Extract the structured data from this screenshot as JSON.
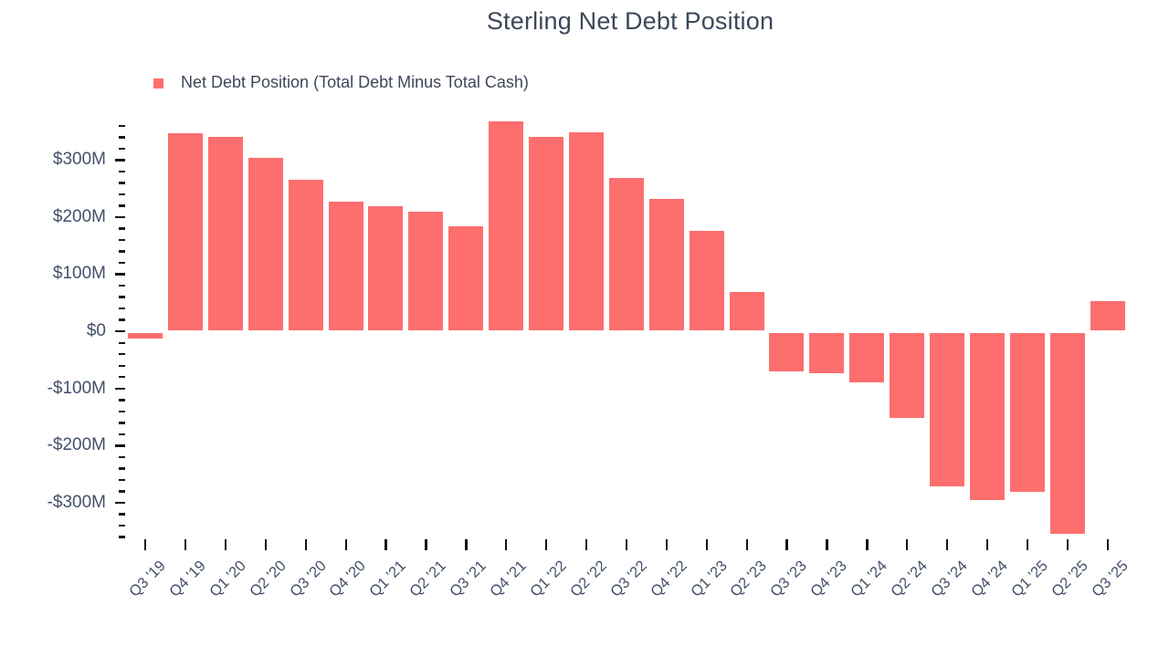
{
  "title": "Sterling Net Debt Position",
  "legend": {
    "label": "Net Debt Position (Total Debt Minus Total Cash)"
  },
  "colors": {
    "bar": "#FD6E6E",
    "title": "#3C4758",
    "axis_label": "#44506A",
    "tick": "#131519",
    "background": "#FFFFFF"
  },
  "chart_data": {
    "type": "bar",
    "title": "Sterling Net Debt Position",
    "series_name": "Net Debt Position (Total Debt Minus Total Cash)",
    "value_unit": "$M",
    "categories": [
      "Q3 '19",
      "Q4 '19",
      "Q1 '20",
      "Q2 '20",
      "Q3 '20",
      "Q4 '20",
      "Q1 '21",
      "Q2 '21",
      "Q3 '21",
      "Q4 '21",
      "Q1 '22",
      "Q2 '22",
      "Q3 '22",
      "Q4 '22",
      "Q1 '23",
      "Q2 '23",
      "Q3 '23",
      "Q4 '23",
      "Q1 '24",
      "Q2 '24",
      "Q3 '24",
      "Q4 '24",
      "Q1 '25",
      "Q2 '25",
      "Q3 '25"
    ],
    "values": [
      -12,
      346,
      341,
      303,
      265,
      227,
      219,
      210,
      183,
      367,
      341,
      349,
      268,
      232,
      176,
      69,
      -70,
      -74,
      -90,
      -152,
      -272,
      -295,
      -281,
      -354,
      52
    ],
    "ylim": [
      -360,
      360
    ],
    "y_minor_tick_step": 20,
    "y_major_tick_step": 100,
    "y_ticks": [
      {
        "value": 300,
        "label": "$300M"
      },
      {
        "value": 200,
        "label": "$200M"
      },
      {
        "value": 100,
        "label": "$100M"
      },
      {
        "value": 0,
        "label": "$0"
      },
      {
        "value": -100,
        "label": "-$100M"
      },
      {
        "value": -200,
        "label": "-$200M"
      },
      {
        "value": -300,
        "label": "-$300M"
      }
    ],
    "grid": false,
    "legend_position": "top-left"
  }
}
